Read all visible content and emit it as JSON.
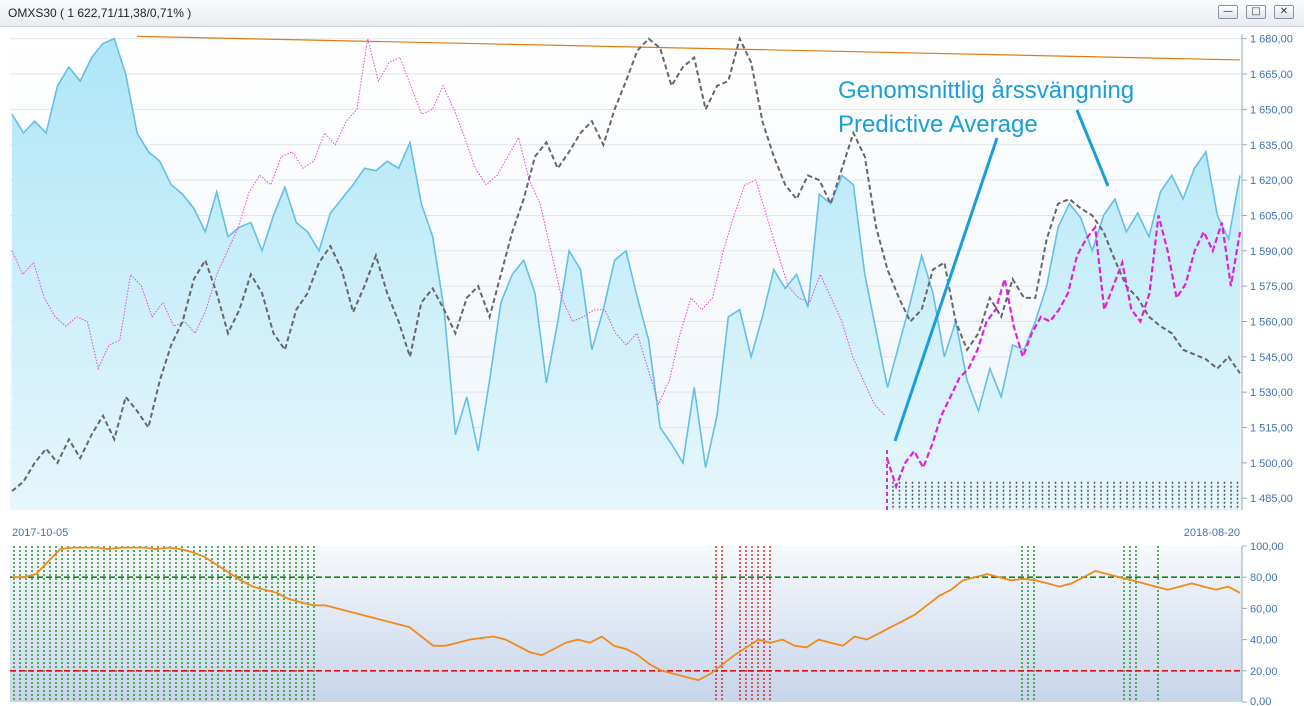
{
  "window": {
    "title": "OMXS30 ( 1 622,71/11,38/0,71% )",
    "buttons": [
      {
        "name": "minimize",
        "glyph": "—"
      },
      {
        "name": "restore",
        "glyph": "□"
      },
      {
        "name": "close",
        "glyph": "✕"
      }
    ]
  },
  "annotations": {
    "line1": "Genomsnittlig årssvängning",
    "line2": "Predictive Average"
  },
  "colors": {
    "area_fill_top": "#aee6f7",
    "area_line": "#63bfe8",
    "gray_dashed": "#666666",
    "magenta_dotted": "#e04ae0",
    "magenta_dashed": "#dd22dd",
    "trend_orange": "#e07c10",
    "oscillator": "#f08a1c",
    "overbought": "#118811",
    "oversold": "#dd1111",
    "annotation": "#1a9ed8",
    "forecast_bars": "#555555"
  },
  "chart_data": [
    {
      "type": "line",
      "panel": "price",
      "ylim": [
        1480,
        1682
      ],
      "yticks": [
        "1 680,00",
        "1 665,00",
        "1 650,00",
        "1 635,00",
        "1 620,00",
        "1 605,00",
        "1 590,00",
        "1 575,00",
        "1 560,00",
        "1 545,00",
        "1 530,00",
        "1 515,00",
        "1 500,00",
        "1 485,00"
      ],
      "ytick_values": [
        1680,
        1665,
        1650,
        1635,
        1620,
        1605,
        1590,
        1575,
        1560,
        1545,
        1530,
        1515,
        1500,
        1485
      ],
      "x_start_label": "2017-10-05",
      "x_end_label": "2018-08-20",
      "series": [
        {
          "style": "area",
          "values": [
            1648,
            1640,
            1645,
            1640,
            1660,
            1668,
            1662,
            1672,
            1678,
            1680,
            1665,
            1640,
            1632,
            1628,
            1618,
            1614,
            1608,
            1598,
            1615,
            1596,
            1600,
            1602,
            1590,
            1605,
            1617,
            1602,
            1598,
            1590,
            1606,
            1612,
            1618,
            1625,
            1624,
            1628,
            1625,
            1636,
            1610,
            1596,
            1565,
            1512,
            1528,
            1505,
            1535,
            1568,
            1580,
            1586,
            1572,
            1534,
            1560,
            1590,
            1582,
            1548,
            1565,
            1586,
            1590,
            1570,
            1552,
            1515,
            1508,
            1500,
            1532,
            1498,
            1520,
            1562,
            1565,
            1545,
            1562,
            1582,
            1574,
            1580,
            1566,
            1614,
            1610,
            1622,
            1618,
            1580,
            1556,
            1532,
            1550,
            1568,
            1588,
            1572,
            1545,
            1560,
            1535,
            1522,
            1540,
            1528,
            1550,
            1548,
            1560,
            1575,
            1600,
            1610,
            1604,
            1590,
            1605,
            1612,
            1598,
            1606,
            1596,
            1615,
            1622,
            1612,
            1625,
            1632,
            1605,
            1595,
            1622
          ]
        },
        {
          "style": "gray-dashed",
          "values": [
            1488,
            1492,
            1500,
            1506,
            1500,
            1510,
            1502,
            1512,
            1520,
            1510,
            1528,
            1522,
            1515,
            1535,
            1550,
            1560,
            1578,
            1586,
            1572,
            1555,
            1565,
            1580,
            1572,
            1555,
            1548,
            1565,
            1572,
            1585,
            1592,
            1582,
            1564,
            1575,
            1588,
            1572,
            1560,
            1545,
            1568,
            1574,
            1565,
            1555,
            1570,
            1575,
            1562,
            1580,
            1598,
            1612,
            1630,
            1636,
            1625,
            1632,
            1640,
            1645,
            1635,
            1650,
            1662,
            1675,
            1680,
            1676,
            1660,
            1668,
            1672,
            1650,
            1660,
            1662,
            1680,
            1670,
            1645,
            1630,
            1618,
            1612,
            1622,
            1620,
            1610,
            1625,
            1640,
            1630,
            1600,
            1582,
            1570,
            1560,
            1565,
            1582,
            1585,
            1560,
            1548,
            1555,
            1570,
            1562,
            1578,
            1570,
            1570,
            1595,
            1610,
            1612,
            1608,
            1605,
            1598,
            1586,
            1575,
            1570,
            1562,
            1558,
            1555,
            1548,
            1546,
            1544,
            1540,
            1545,
            1538
          ]
        },
        {
          "style": "magenta-dotted",
          "values": [
            1590,
            1580,
            1585,
            1570,
            1562,
            1558,
            1562,
            1560,
            1540,
            1550,
            1552,
            1580,
            1575,
            1562,
            1568,
            1558,
            1560,
            1555,
            1565,
            1580,
            1590,
            1600,
            1615,
            1622,
            1618,
            1630,
            1632,
            1625,
            1628,
            1640,
            1635,
            1645,
            1650,
            1680,
            1662,
            1670,
            1672,
            1660,
            1648,
            1650,
            1660,
            1650,
            1638,
            1625,
            1618,
            1622,
            1630,
            1638,
            1620,
            1610,
            1590,
            1570,
            1560,
            1562,
            1565,
            1565,
            1555,
            1550,
            1555,
            1540,
            1525,
            1535,
            1555,
            1570,
            1565,
            1570,
            1590,
            1605,
            1618,
            1620,
            1605,
            1590,
            1575,
            1570,
            1568,
            1580,
            1570,
            1560,
            1545,
            1535,
            1525,
            1520
          ]
        },
        {
          "style": "magenta-dashed",
          "values": [
            1502,
            1490,
            1500,
            1505,
            1498,
            1508,
            1520,
            1528,
            1536,
            1540,
            1548,
            1560,
            1565,
            1578,
            1558,
            1545,
            1555,
            1562,
            1560,
            1565,
            1572,
            1588,
            1595,
            1600,
            1565,
            1575,
            1585,
            1565,
            1560,
            1572,
            1605,
            1590,
            1570,
            1576,
            1590,
            1598,
            1590,
            1602,
            1575,
            1598
          ]
        },
        {
          "style": "trend",
          "values": [
            1681,
            1678,
            1676,
            1675,
            1673,
            1671
          ]
        }
      ]
    },
    {
      "type": "line",
      "panel": "oscillator",
      "ylim": [
        0,
        100
      ],
      "yticks": [
        "100,00",
        "80,00",
        "60,00",
        "40,00",
        "20,00",
        "0,00"
      ],
      "ytick_values": [
        100,
        80,
        60,
        40,
        20,
        0
      ],
      "thresholds": {
        "overbought": 80,
        "oversold": 20
      },
      "series": [
        {
          "name": "",
          "values": [
            80,
            80,
            82,
            90,
            98,
            99,
            99,
            99,
            98,
            99,
            99,
            99,
            98,
            99,
            98,
            96,
            93,
            88,
            83,
            78,
            74,
            72,
            70,
            66,
            64,
            62,
            62,
            60,
            58,
            56,
            54,
            52,
            50,
            48,
            42,
            36,
            36,
            38,
            40,
            41,
            42,
            40,
            36,
            32,
            30,
            34,
            38,
            40,
            38,
            42,
            36,
            34,
            30,
            24,
            20,
            18,
            16,
            14,
            18,
            24,
            30,
            35,
            40,
            38,
            40,
            36,
            35,
            40,
            38,
            36,
            42,
            40,
            44,
            48,
            52,
            56,
            62,
            68,
            72,
            78,
            80,
            82,
            80,
            78,
            79,
            78,
            76,
            74,
            76,
            80,
            84,
            82,
            80,
            78,
            76,
            74,
            72,
            74,
            76,
            74,
            72,
            74,
            70
          ]
        }
      ]
    }
  ]
}
